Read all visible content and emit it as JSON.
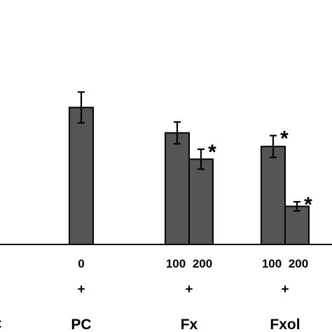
{
  "chart_data": {
    "type": "bar",
    "title": "",
    "xlabel": "",
    "ylabel": "",
    "bar_color": "#555555",
    "ylim": [
      0,
      1
    ],
    "groups": [
      {
        "name": "C",
        "plus": "",
        "bars": []
      },
      {
        "name": "PC",
        "plus": "+",
        "bars": [
          {
            "dose": "0",
            "value": 0.755,
            "error": 0.085,
            "star": ""
          }
        ]
      },
      {
        "name": "Fx",
        "plus": "+",
        "bars": [
          {
            "dose": "100",
            "value": 0.615,
            "error": 0.06,
            "star": ""
          },
          {
            "dose": "200",
            "value": 0.47,
            "error": 0.055,
            "star": "*"
          }
        ]
      },
      {
        "name": "Fxol",
        "plus": "+",
        "bars": [
          {
            "dose": "100",
            "value": 0.54,
            "error": 0.06,
            "star": "*"
          },
          {
            "dose": "200",
            "value": 0.21,
            "error": 0.025,
            "star": "*"
          }
        ]
      }
    ],
    "grid": false,
    "legend": "none"
  }
}
